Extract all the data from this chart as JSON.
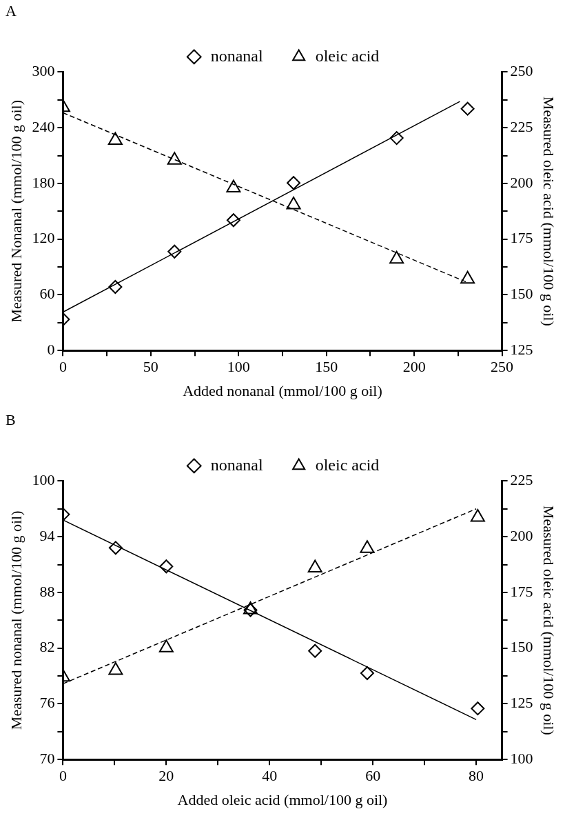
{
  "chart_data": [
    {
      "type": "scatter",
      "title": "A",
      "xlabel": "Added nonanal (mmol/100 g oil)",
      "ylabel": "Measured Nonanal (mmol/100 g oil)",
      "y2label": "Measured oleic acid (mmol/100 g oil)",
      "legend": "top",
      "x": [
        0,
        29.8,
        63.5,
        97.1,
        131.3,
        190,
        230.4
      ],
      "series": [
        {
          "name": "nonanal",
          "color": "#000000",
          "marker": "diamond",
          "values": [
            33.6,
            68.5,
            106.6,
            140.4,
            180.5,
            228.9,
            260.4
          ]
        },
        {
          "name": "oleic acid",
          "color": "#000000",
          "marker": "triangle",
          "axis": "y2",
          "values": [
            234.1,
            219.3,
            210.4,
            198,
            190.4,
            166,
            157
          ]
        },
        {
          "type": "line",
          "color": "#000000",
          "marker": "none",
          "line_style": "solid",
          "x": [
            0,
            226
          ],
          "values": [
            41.4,
            268.2
          ]
        },
        {
          "type": "line",
          "color": "#000000",
          "marker": "none",
          "line_style": "dashed",
          "axis": "y2",
          "x": [
            0,
            230.4
          ],
          "values": [
            231.7,
            155.5
          ]
        }
      ],
      "xlim": [
        0,
        250
      ],
      "xticks": [
        0,
        {
          "value": 25,
          "label": null
        },
        50,
        {
          "value": 75,
          "label": null
        },
        100,
        {
          "value": 125,
          "label": null
        },
        150,
        {
          "value": 175,
          "label": null
        },
        200,
        {
          "value": 225,
          "label": null
        },
        250
      ],
      "ylim": [
        0,
        300
      ],
      "yticks": [
        0,
        {
          "value": 30,
          "label": null
        },
        60,
        {
          "value": 90,
          "label": null
        },
        120,
        {
          "value": 150,
          "label": null
        },
        180,
        {
          "value": 210,
          "label": null
        },
        240,
        {
          "value": 270,
          "label": null
        },
        300
      ],
      "y2lim": [
        125,
        250
      ],
      "y2ticks": [
        125,
        {
          "value": 137.5,
          "label": null
        },
        150,
        {
          "value": 162.5,
          "label": null
        },
        175,
        {
          "value": 187.5,
          "label": null
        },
        200,
        {
          "value": 212.5,
          "label": null
        },
        225,
        {
          "value": 237.5,
          "label": null
        },
        250
      ]
    },
    {
      "type": "scatter",
      "title": "B",
      "xlabel": "Added oleic acid (mmol/100 g oil)",
      "ylabel": "Measured nonanal (mmol/100 g oil)",
      "y2label": "Measured oleic acid (mmol/100 g oil)",
      "legend": "top",
      "x": [
        0,
        10.2,
        20,
        36.3,
        48.8,
        58.9,
        80.3
      ],
      "series": [
        {
          "name": "nonanal",
          "color": "#000000",
          "marker": "diamond",
          "values": [
            96.4,
            92.8,
            90.8,
            86.1,
            81.7,
            79.3,
            75.5
          ]
        },
        {
          "name": "oleic acid",
          "color": "#000000",
          "marker": "triangle",
          "axis": "y2",
          "values": [
            137,
            140,
            150.1,
            167.2,
            186,
            194.7,
            208.7
          ]
        },
        {
          "type": "line",
          "color": "#000000",
          "marker": "none",
          "line_style": "solid",
          "x": [
            0,
            80
          ],
          "values": [
            95.8,
            74.3
          ]
        },
        {
          "type": "line",
          "color": "#000000",
          "marker": "none",
          "line_style": "dashed",
          "axis": "y2",
          "x": [
            0,
            80
          ],
          "values": [
            134,
            212.5
          ]
        }
      ],
      "xlim": [
        0,
        85
      ],
      "xticks": [
        0,
        {
          "value": 10,
          "label": null
        },
        20,
        {
          "value": 30,
          "label": null
        },
        40,
        {
          "value": 50,
          "label": null
        },
        60,
        {
          "value": 70,
          "label": null
        },
        80
      ],
      "ylim": [
        70,
        100
      ],
      "yticks": [
        70,
        {
          "value": 73,
          "label": null
        },
        76,
        {
          "value": 79,
          "label": null
        },
        82,
        {
          "value": 85,
          "label": null
        },
        88,
        {
          "value": 91,
          "label": null
        },
        94,
        {
          "value": 97,
          "label": null
        },
        100
      ],
      "y2lim": [
        100,
        225
      ],
      "y2ticks": [
        100,
        {
          "value": 112.5,
          "label": null
        },
        125,
        {
          "value": 137.5,
          "label": null
        },
        150,
        {
          "value": 162.5,
          "label": null
        },
        175,
        {
          "value": 187.5,
          "label": null
        },
        200,
        {
          "value": 212.5,
          "label": null
        },
        225
      ]
    }
  ]
}
